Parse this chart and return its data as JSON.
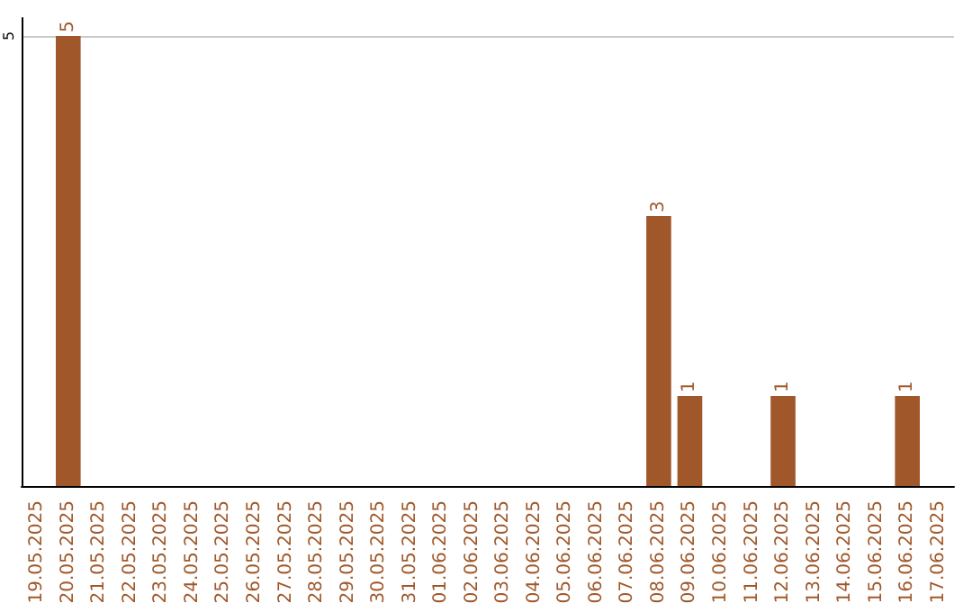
{
  "chart_data": {
    "type": "bar",
    "categories": [
      "19.05.2025",
      "20.05.2025",
      "21.05.2025",
      "22.05.2025",
      "23.05.2025",
      "24.05.2025",
      "25.05.2025",
      "26.05.2025",
      "27.05.2025",
      "28.05.2025",
      "29.05.2025",
      "30.05.2025",
      "31.05.2025",
      "01.06.2025",
      "02.06.2025",
      "03.06.2025",
      "04.06.2025",
      "05.06.2025",
      "06.06.2025",
      "07.06.2025",
      "08.06.2025",
      "09.06.2025",
      "10.06.2025",
      "11.06.2025",
      "12.06.2025",
      "13.06.2025",
      "14.06.2025",
      "15.06.2025",
      "16.06.2025",
      "17.06.2025"
    ],
    "values": [
      0,
      5,
      0,
      0,
      0,
      0,
      0,
      0,
      0,
      0,
      0,
      0,
      0,
      0,
      0,
      0,
      0,
      0,
      0,
      0,
      3,
      1,
      0,
      0,
      1,
      0,
      0,
      0,
      1,
      0
    ],
    "value_labels": [
      null,
      "5",
      null,
      null,
      null,
      null,
      null,
      null,
      null,
      null,
      null,
      null,
      null,
      null,
      null,
      null,
      null,
      null,
      null,
      null,
      "3",
      "1",
      null,
      null,
      "1",
      null,
      null,
      null,
      "1",
      null
    ],
    "color": "#a0582a",
    "ylim": [
      0,
      5.2
    ],
    "yticks": [
      5
    ],
    "grid": "y"
  }
}
